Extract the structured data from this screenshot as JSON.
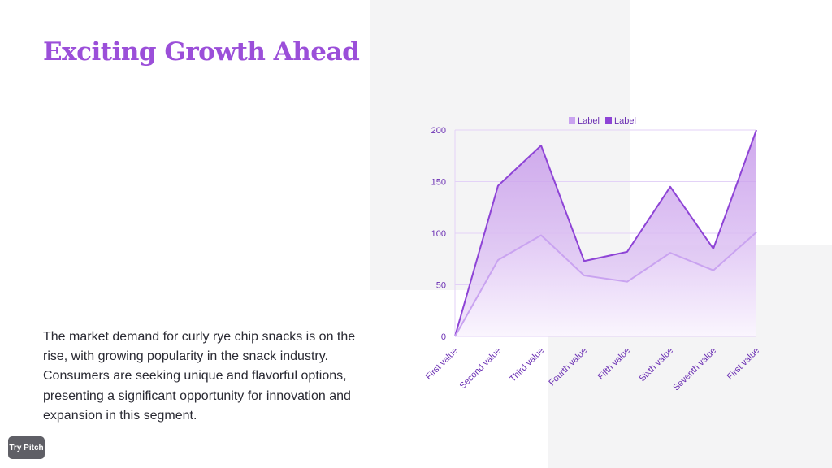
{
  "slide": {
    "title": "Exciting Growth Ahead",
    "body": "The market demand for curly rye chip snacks is on the rise, with growing popularity in the snack industry. Consumers are seeking unique and flavorful options, presenting a significant opportunity for innovation and expansion in this segment."
  },
  "badge": {
    "label": "Try Pitch"
  },
  "colors": {
    "title": "#9b4fd9",
    "series_light": "#c9a3f0",
    "series_dark": "#8e44d6",
    "axis_text": "#6b2fb3",
    "grid": "#e3d2f7",
    "background_panel": "#f4f4f5"
  },
  "chart_data": {
    "type": "area",
    "categories": [
      "First value",
      "Second value",
      "Third value",
      "Fourth value",
      "Fifth value",
      "Sixth value",
      "Seventh value",
      "First value"
    ],
    "series": [
      {
        "name": "Label",
        "values": [
          0,
          74,
          98,
          59,
          53,
          81,
          64,
          101
        ]
      },
      {
        "name": "Label",
        "values": [
          0,
          146,
          185,
          73,
          82,
          145,
          85,
          200
        ]
      }
    ],
    "yticks": [
      0,
      50,
      100,
      150,
      200
    ],
    "ylim": [
      0,
      200
    ],
    "grid": true,
    "legend_position": "top"
  }
}
